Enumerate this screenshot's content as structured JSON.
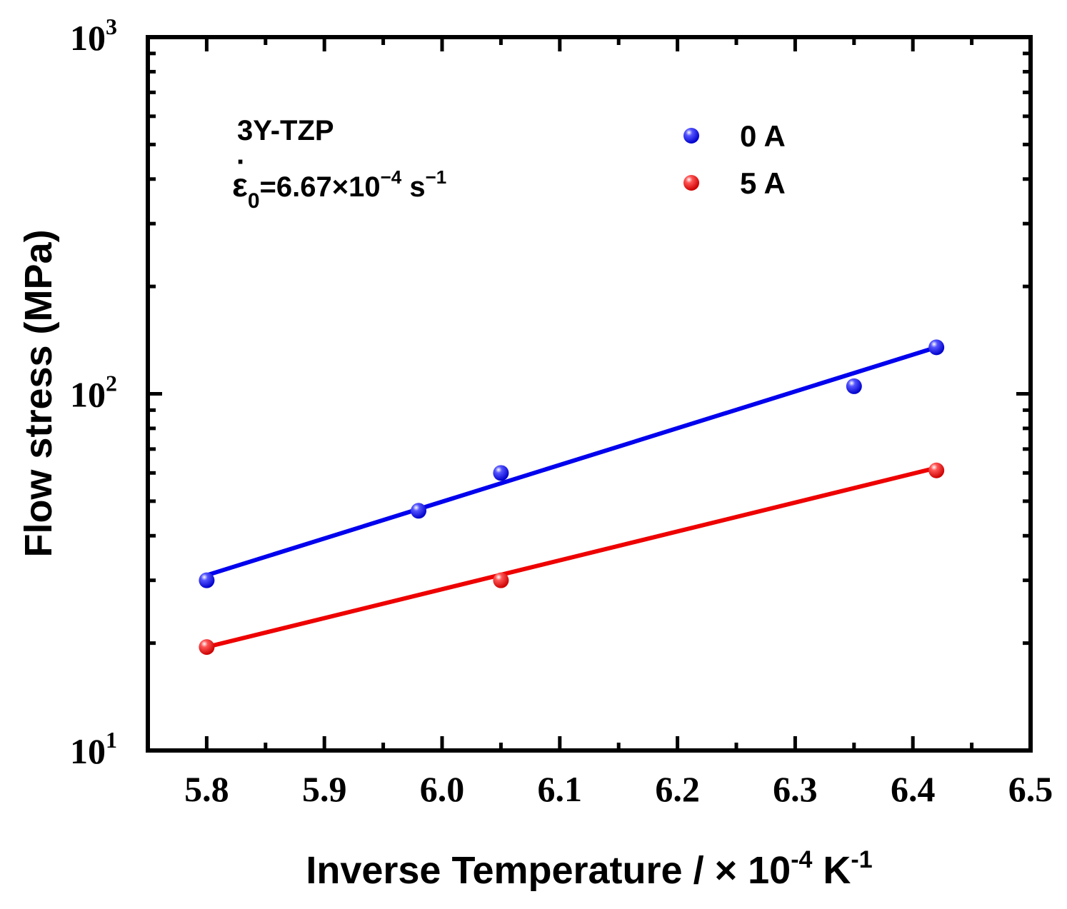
{
  "chart_data": {
    "type": "scatter",
    "xlabel": {
      "main": "Inverse Temperature / × 10",
      "exp1": "-4",
      "unit": " K",
      "exp2": "-1"
    },
    "ylabel": "Flow stress (MPa)",
    "xlim": [
      5.75,
      6.5
    ],
    "ylim": [
      10,
      1000
    ],
    "yscale": "log",
    "x_ticks": [
      "5.8",
      "5.9",
      "6.0",
      "6.1",
      "6.2",
      "6.3",
      "6.4",
      "6.5"
    ],
    "y_ticks": [
      {
        "value": 10,
        "base": "10",
        "exp": "1"
      },
      {
        "value": 100,
        "base": "10",
        "exp": "2"
      },
      {
        "value": 1000,
        "base": "10",
        "exp": "3"
      }
    ],
    "annotations": {
      "material": "3Y-TZP",
      "rate_symbol": "ε",
      "rate_dot": "·",
      "rate_sub": "0",
      "rate_value": "=6.67×10",
      "rate_exp": "−4",
      "rate_unit": " s",
      "rate_unit_exp": "−1"
    },
    "legend_position": "top-right",
    "series": [
      {
        "name": "0 A",
        "color": "#0000ee",
        "x": [
          5.8,
          5.98,
          6.05,
          6.35,
          6.42
        ],
        "y": [
          30,
          47,
          60,
          105,
          135
        ],
        "fit": {
          "x": [
            5.8,
            6.42
          ],
          "y": [
            31,
            135
          ]
        }
      },
      {
        "name": "5 A",
        "color": "#ee0000",
        "x": [
          5.8,
          6.05,
          6.42
        ],
        "y": [
          19.5,
          30,
          61
        ],
        "fit": {
          "x": [
            5.8,
            6.42
          ],
          "y": [
            19.5,
            62
          ]
        }
      }
    ]
  }
}
